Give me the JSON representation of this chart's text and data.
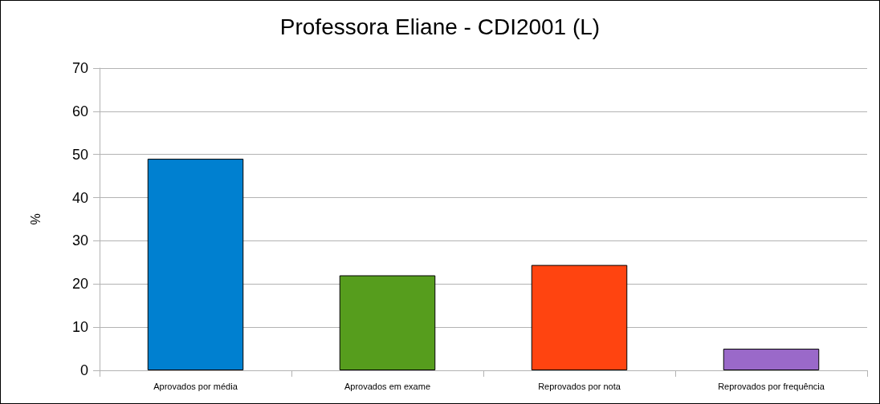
{
  "chart_data": {
    "type": "bar",
    "title": "Professora Eliane - CDI2001 (L)",
    "ylabel": "%",
    "categories": [
      "Aprovados por média",
      "Aprovados em exame",
      "Reprovados por nota",
      "Reprovados por frequência"
    ],
    "values": [
      49,
      22,
      24.4,
      5
    ],
    "colors": [
      "#0080d0",
      "#569d1d",
      "#ff4410",
      "#9a69c9"
    ],
    "ylim": [
      0,
      70
    ],
    "yticks": [
      0,
      10,
      20,
      30,
      40,
      50,
      60,
      70
    ],
    "grid": "y"
  }
}
